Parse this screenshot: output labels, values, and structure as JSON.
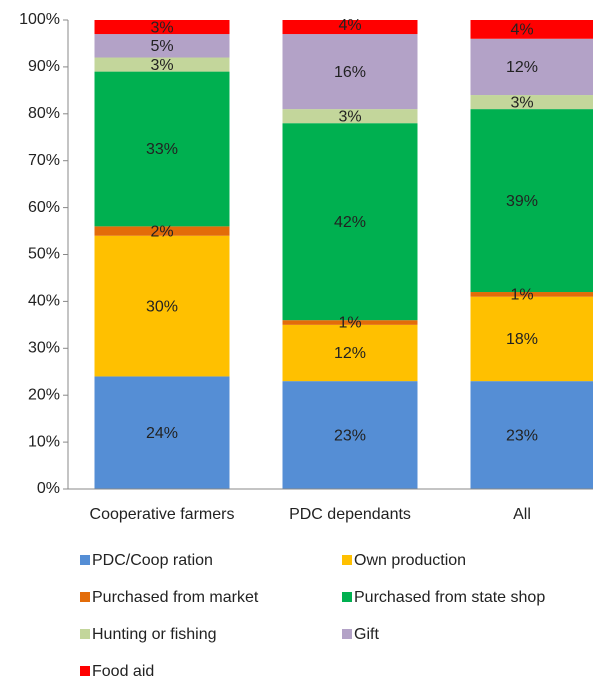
{
  "chart_data": {
    "type": "stacked_bar",
    "categories": [
      "Cooperative farmers",
      "PDC dependants",
      "All"
    ],
    "series": [
      {
        "name": "PDC/Coop ration",
        "color": "#558ed5",
        "values": [
          24,
          23,
          23
        ],
        "value_labels": [
          "24%",
          "23%",
          "23%"
        ]
      },
      {
        "name": "Own production",
        "color": "#ffc000",
        "values": [
          30,
          12,
          18
        ],
        "value_labels": [
          "30%",
          "12%",
          "18%"
        ]
      },
      {
        "name": "Purchased from market",
        "color": "#e36c09",
        "values": [
          2,
          1,
          1
        ],
        "value_labels": [
          "2%",
          "1%",
          "1%"
        ]
      },
      {
        "name": "Purchased from state shop",
        "color": "#00b050",
        "values": [
          33,
          42,
          39
        ],
        "value_labels": [
          "33%",
          "42%",
          "39%"
        ]
      },
      {
        "name": "Hunting or fishing",
        "color": "#c3d69b",
        "values": [
          3,
          3,
          3
        ],
        "value_labels": [
          "3%",
          "3%",
          "3%"
        ]
      },
      {
        "name": "Gift",
        "color": "#b3a2c7",
        "values": [
          5,
          16,
          12
        ],
        "value_labels": [
          "5%",
          "16%",
          "12%"
        ]
      },
      {
        "name": "Food aid",
        "color": "#ff0000",
        "values": [
          3,
          4,
          4
        ],
        "value_labels": [
          "3%",
          "4%",
          "4%"
        ]
      }
    ],
    "ylim": [
      0,
      100
    ],
    "yticks": [
      {
        "value": 0,
        "label": "0%"
      },
      {
        "value": 10,
        "label": "10%"
      },
      {
        "value": 20,
        "label": "20%"
      },
      {
        "value": 30,
        "label": "30%"
      },
      {
        "value": 40,
        "label": "40%"
      },
      {
        "value": 50,
        "label": "50%"
      },
      {
        "value": 60,
        "label": "60%"
      },
      {
        "value": 70,
        "label": "70%"
      },
      {
        "value": 80,
        "label": "80%"
      },
      {
        "value": 90,
        "label": "90%"
      },
      {
        "value": 100,
        "label": "100%"
      }
    ],
    "grid": false,
    "legend": "bottom"
  }
}
